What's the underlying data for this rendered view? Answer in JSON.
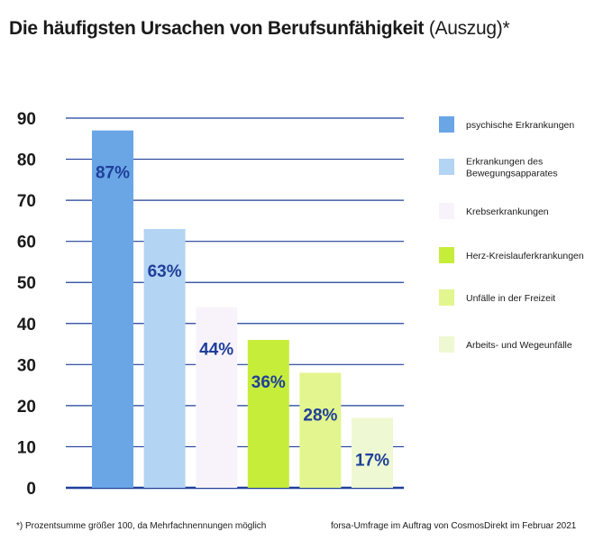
{
  "header": {
    "title": "Die häufigsten Ursachen von Berufsunfähigkeit",
    "subtitle": "(Auszug)*"
  },
  "footer": {
    "note": "*) Prozentsumme größer 100, da Mehrfachnennungen möglich",
    "source": "forsa-Umfrage im Auftrag von CosmosDirekt im Februar 2021"
  },
  "chart_data": {
    "type": "bar",
    "categories": [
      "psychische Erkrankungen",
      "Erkrankungen des Bewegungsapparates",
      "Krebserkrankungen",
      "Herz-Kreislauferkrankungen",
      "Unfälle in der Freizeit",
      "Arbeits- und Wegeunfälle"
    ],
    "category_lines": [
      [
        "psychische Erkrankungen"
      ],
      [
        "Erkrankungen des",
        "Bewegungsapparates"
      ],
      [
        "Krebserkrankungen"
      ],
      [
        "Herz-Kreislauferkrankungen"
      ],
      [
        "Unfälle in der Freizeit"
      ],
      [
        "Arbeits- und Wegeunfälle"
      ]
    ],
    "values": [
      87,
      63,
      44,
      36,
      28,
      17
    ],
    "data_labels": [
      "87%",
      "63%",
      "44%",
      "36%",
      "28%",
      "17%"
    ],
    "colors": [
      "#6aa6e6",
      "#b3d4f3",
      "#f8f3fb",
      "#c7ed3b",
      "#e3f58e",
      "#eef8d2"
    ],
    "yticks": [
      0,
      10,
      20,
      30,
      40,
      50,
      60,
      70,
      80,
      90
    ],
    "ylim": [
      0,
      90
    ],
    "grid": true,
    "grid_color": "#1f3f9a",
    "label_color": "#1f3f9a",
    "legend_position": "right",
    "title": "Die häufigsten Ursachen von Berufsunfähigkeit",
    "xlabel": "",
    "ylabel": ""
  }
}
